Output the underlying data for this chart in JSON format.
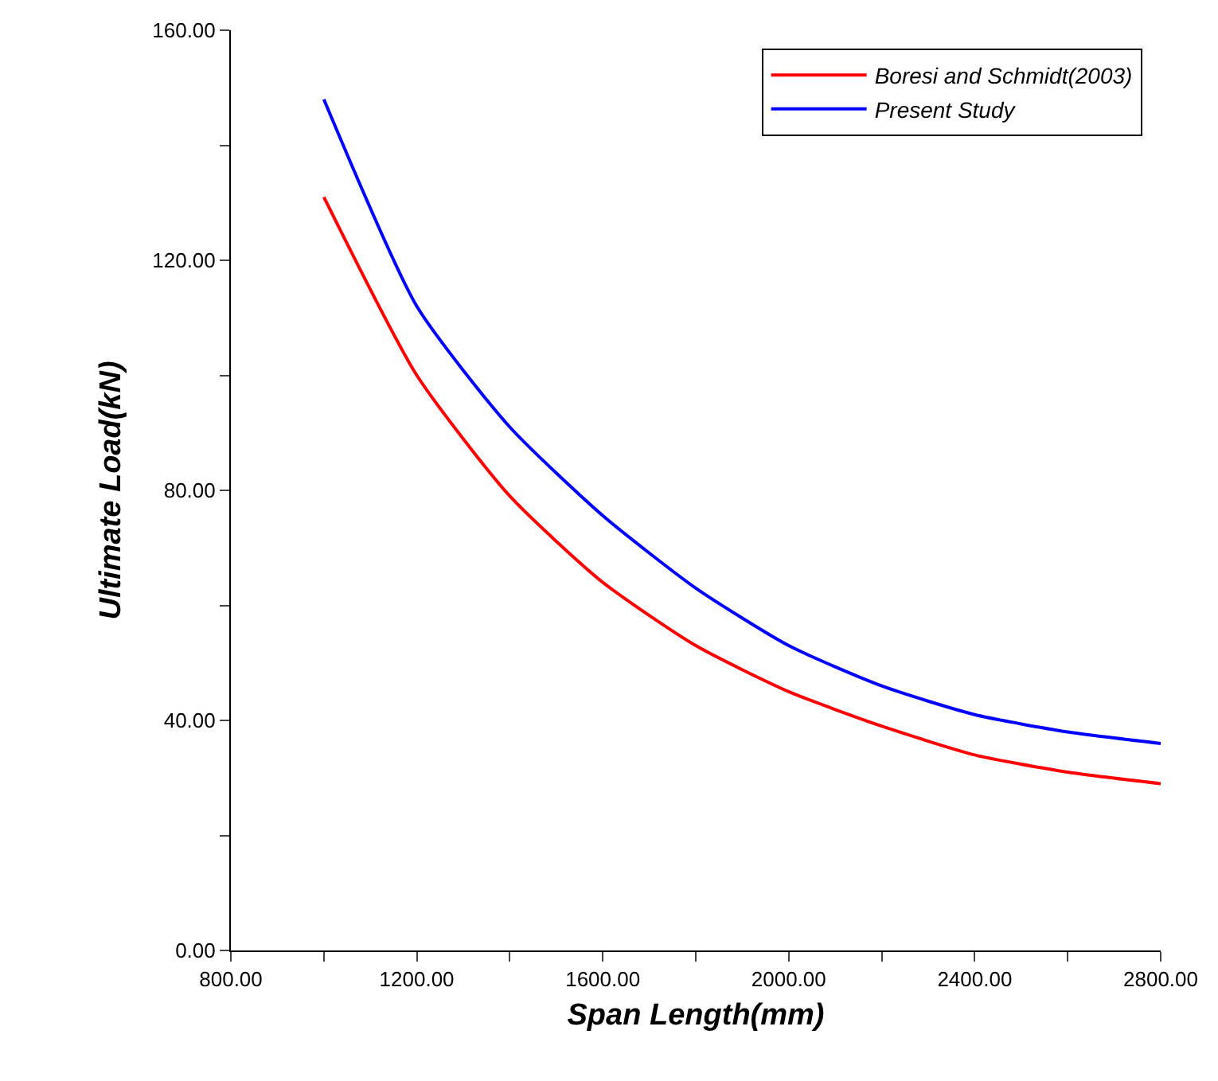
{
  "chart_data": {
    "type": "line",
    "xlabel": "Span Length(mm)",
    "ylabel": "Ultimate Load(kN)",
    "x": [
      1000,
      1200,
      1400,
      1600,
      1800,
      2000,
      2200,
      2400,
      2600,
      2800
    ],
    "series": [
      {
        "name": "Boresi and Schmidt(2003)",
        "color": "#ff0000",
        "values": [
          131,
          100,
          79,
          64,
          53,
          45,
          39,
          34,
          31,
          29
        ]
      },
      {
        "name": "Present Study",
        "color": "#0000ff",
        "values": [
          148,
          112,
          91,
          75.6,
          63,
          53,
          46,
          41,
          38,
          36
        ]
      }
    ],
    "xlim": [
      800,
      2800
    ],
    "ylim": [
      0,
      160
    ],
    "xticks": [
      {
        "value": 800,
        "label": "800.00"
      },
      {
        "value": 1000,
        "label": null
      },
      {
        "value": 1200,
        "label": "1200.00"
      },
      {
        "value": 1400,
        "label": null
      },
      {
        "value": 1600,
        "label": "1600.00"
      },
      {
        "value": 1800,
        "label": null
      },
      {
        "value": 2000,
        "label": "2000.00"
      },
      {
        "value": 2200,
        "label": null
      },
      {
        "value": 2400,
        "label": "2400.00"
      },
      {
        "value": 2600,
        "label": null
      },
      {
        "value": 2800,
        "label": "2800.00"
      }
    ],
    "yticks": [
      {
        "value": 0,
        "label": "0.00"
      },
      {
        "value": 20,
        "label": null
      },
      {
        "value": 40,
        "label": "40.00"
      },
      {
        "value": 60,
        "label": null
      },
      {
        "value": 80,
        "label": "80.00"
      },
      {
        "value": 100,
        "label": null
      },
      {
        "value": 120,
        "label": "120.00"
      },
      {
        "value": 140,
        "label": null
      },
      {
        "value": 160,
        "label": "160.00"
      }
    ],
    "grid": false,
    "legend": "top right",
    "marker": "none",
    "line_style": "solid"
  }
}
